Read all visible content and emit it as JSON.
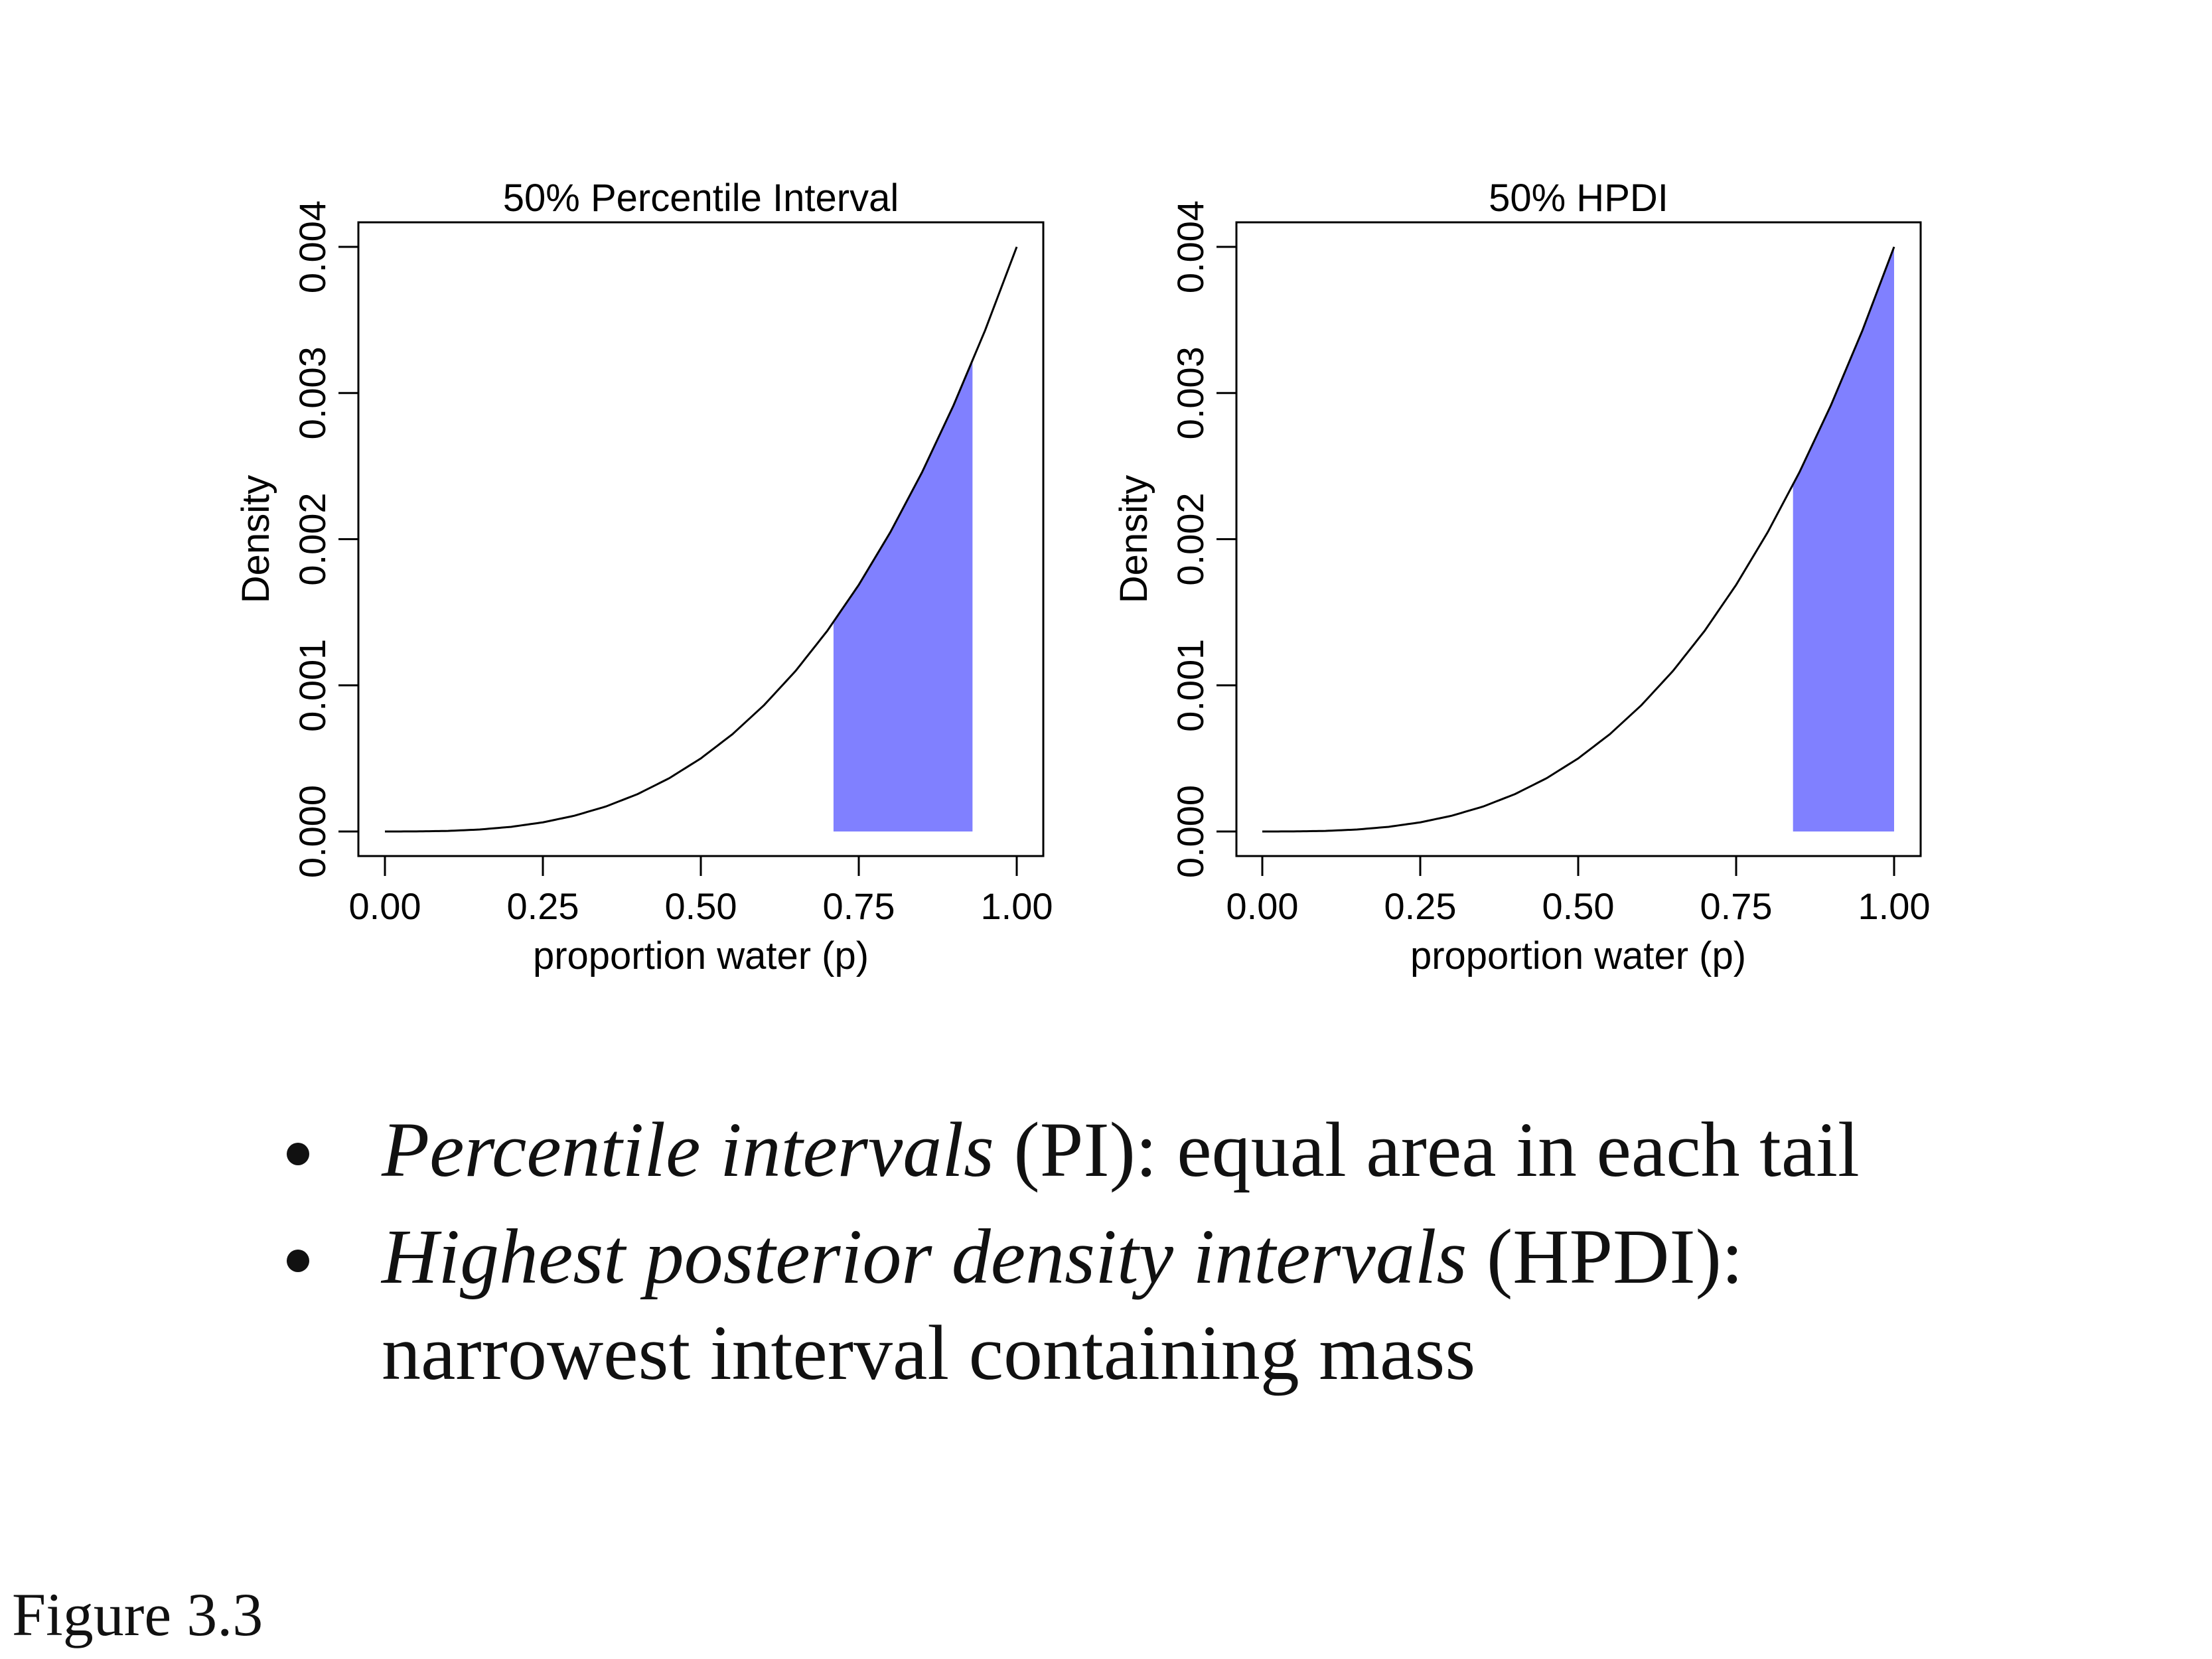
{
  "chart_data": [
    {
      "type": "area",
      "title": "50% Percentile Interval",
      "xlabel": "proportion water (p)",
      "ylabel": "Density",
      "xlim": [
        0,
        1
      ],
      "ylim": [
        0,
        0.004
      ],
      "x_ticks": [
        "0.00",
        "0.25",
        "0.50",
        "0.75",
        "1.00"
      ],
      "y_ticks": [
        "0.000",
        "0.001",
        "0.002",
        "0.003",
        "0.004"
      ],
      "curve": {
        "x": [
          0.0,
          0.05,
          0.1,
          0.15,
          0.2,
          0.25,
          0.3,
          0.35,
          0.4,
          0.45,
          0.5,
          0.55,
          0.6,
          0.65,
          0.7,
          0.75,
          0.8,
          0.85,
          0.9,
          0.95,
          1.0
        ],
        "y": [
          0.0,
          5e-07,
          4e-06,
          1.35e-05,
          3.2e-05,
          6.25e-05,
          0.000108,
          0.0001715,
          0.000256,
          0.0003645,
          0.0005,
          0.0006655,
          0.000864,
          0.0010985,
          0.001372,
          0.0016875,
          0.002048,
          0.0024565,
          0.002916,
          0.0034295,
          0.004
        ]
      },
      "shaded_interval": [
        0.71,
        0.93
      ],
      "fill_color": "#8080ff",
      "grid": false
    },
    {
      "type": "area",
      "title": "50% HPDI",
      "xlabel": "proportion water (p)",
      "ylabel": "Density",
      "xlim": [
        0,
        1
      ],
      "ylim": [
        0,
        0.004
      ],
      "x_ticks": [
        "0.00",
        "0.25",
        "0.50",
        "0.75",
        "1.00"
      ],
      "y_ticks": [
        "0.000",
        "0.001",
        "0.002",
        "0.003",
        "0.004"
      ],
      "curve": {
        "x": [
          0.0,
          0.05,
          0.1,
          0.15,
          0.2,
          0.25,
          0.3,
          0.35,
          0.4,
          0.45,
          0.5,
          0.55,
          0.6,
          0.65,
          0.7,
          0.75,
          0.8,
          0.85,
          0.9,
          0.95,
          1.0
        ],
        "y": [
          0.0,
          5e-07,
          4e-06,
          1.35e-05,
          3.2e-05,
          6.25e-05,
          0.000108,
          0.0001715,
          0.000256,
          0.0003645,
          0.0005,
          0.0006655,
          0.000864,
          0.0010985,
          0.001372,
          0.0016875,
          0.002048,
          0.0024565,
          0.002916,
          0.0034295,
          0.004
        ]
      },
      "shaded_interval": [
        0.84,
        1.0
      ],
      "fill_color": "#8080ff",
      "grid": false
    }
  ],
  "bullets": [
    {
      "italic": "Percentile intervals",
      "rest": " (PI): equal area in each tail"
    },
    {
      "italic": "Highest posterior density intervals",
      "rest": " (HPDI): narrowest interval containing mass"
    }
  ],
  "caption": "Figure 3.3"
}
